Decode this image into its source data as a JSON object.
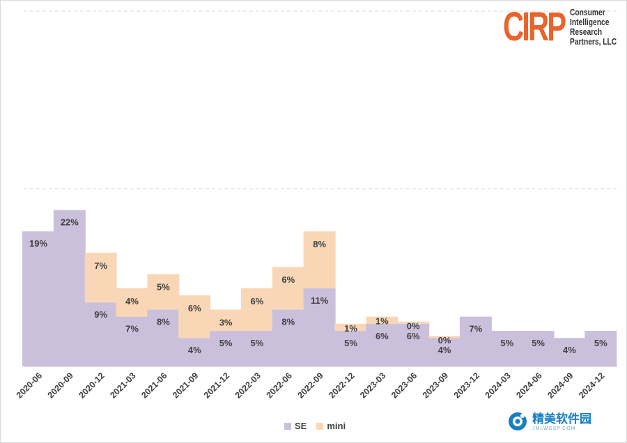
{
  "logo": {
    "mark": "CIRP",
    "lines": [
      "Consumer",
      "Intelligence",
      "Research",
      "Partners, LLC"
    ],
    "color": "#e8642b"
  },
  "watermark": {
    "text": "精美软件园",
    "subtext": "JMLWGSP.COM"
  },
  "legend": [
    {
      "label": "SE",
      "color": "#cbc0dc"
    },
    {
      "label": "mini",
      "color": "#f9d7b6"
    }
  ],
  "chart_data": {
    "type": "bar",
    "stacked": true,
    "categories": [
      "2020-06",
      "2020-09",
      "2020-12",
      "2021-03",
      "2021-06",
      "2021-09",
      "2021-12",
      "2022-03",
      "2022-06",
      "2022-09",
      "2022-12",
      "2023-03",
      "2023-06",
      "2023-09",
      "2023-12",
      "2024-03",
      "2024-06",
      "2024-09",
      "2024-12"
    ],
    "series": [
      {
        "name": "SE",
        "color": "#cbc0dc",
        "values": [
          19,
          22,
          9,
          7,
          8,
          4,
          5,
          5,
          8,
          11,
          5,
          6,
          6,
          4,
          7,
          5,
          5,
          4,
          5
        ],
        "labels": [
          "19%",
          "22%",
          "9%",
          "7%",
          "8%",
          "4%",
          "5%",
          "5%",
          "8%",
          "11%",
          "5%",
          "6%",
          "6%",
          "4%",
          "7%",
          "5%",
          "5%",
          "4%",
          "5%"
        ]
      },
      {
        "name": "mini",
        "color": "#f9d7b6",
        "values": [
          0,
          0,
          7,
          4,
          5,
          6,
          3,
          6,
          6,
          8,
          1,
          1,
          0.3,
          0.3,
          0,
          0,
          0,
          0,
          0
        ],
        "labels": [
          "",
          "",
          "7%",
          "4%",
          "5%",
          "6%",
          "3%",
          "6%",
          "6%",
          "8%",
          "1%",
          "1%",
          "0%",
          "0%",
          "",
          "",
          "",
          "",
          ""
        ]
      }
    ],
    "ylim": [
      0,
      50
    ],
    "grid": "dashed horizontal",
    "legend_position": "bottom"
  }
}
